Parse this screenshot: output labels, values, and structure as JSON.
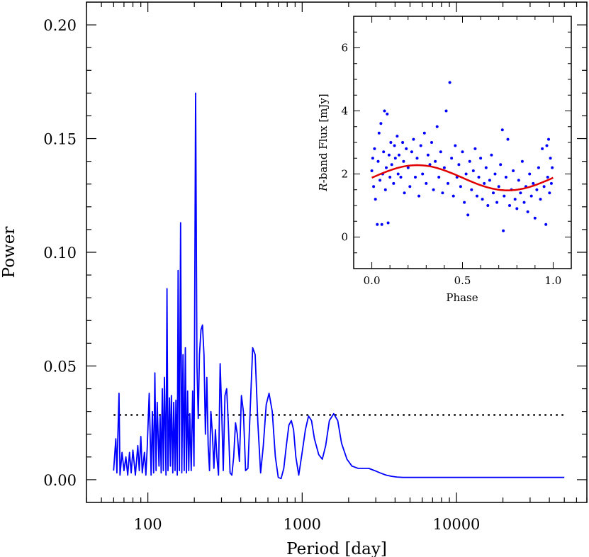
{
  "chart_data": [
    {
      "type": "line",
      "name": "periodogram",
      "xlabel": "Period [day]",
      "ylabel": "Power",
      "xscale": "log",
      "xlim": [
        40,
        70000
      ],
      "ylim": [
        -0.01,
        0.21
      ],
      "xticks": [
        100,
        1000,
        10000
      ],
      "xtick_labels": [
        "100",
        "1000",
        "10000"
      ],
      "yticks": [
        0.0,
        0.05,
        0.1,
        0.15,
        0.2
      ],
      "ytick_labels": [
        "0.00",
        "0.05",
        "0.10",
        "0.15",
        "0.20"
      ],
      "line_color": "#0000ff",
      "threshold": {
        "value": 0.0285,
        "x_range": [
          60,
          50000
        ],
        "style": "dotted",
        "color": "#000000"
      },
      "series": [
        {
          "name": "power",
          "x": [
            60,
            62,
            63,
            65,
            66,
            68,
            70,
            72,
            74,
            76,
            78,
            80,
            83,
            86,
            88,
            90,
            92,
            95,
            97,
            99,
            102,
            105,
            107,
            109,
            111,
            113,
            115,
            118,
            120,
            122,
            124,
            126,
            128,
            131,
            133,
            135,
            138,
            140,
            142,
            145,
            147,
            150,
            152,
            155,
            157,
            160,
            163,
            166,
            169,
            172,
            175,
            178,
            181,
            184,
            187,
            191,
            195,
            199,
            204,
            208,
            212,
            216,
            221,
            226,
            231,
            236,
            241,
            246,
            251,
            256,
            262,
            268,
            274,
            280,
            287,
            294,
            301,
            308,
            316,
            324,
            332,
            341,
            350,
            360,
            370,
            380,
            392,
            404,
            416,
            430,
            445,
            460,
            478,
            496,
            516,
            538,
            560,
            585,
            610,
            640,
            670,
            700,
            730,
            760,
            790,
            820,
            850,
            880,
            910,
            950,
            1000,
            1050,
            1100,
            1150,
            1200,
            1280,
            1350,
            1420,
            1500,
            1600,
            1700,
            1800,
            1950,
            2100,
            2300,
            2500,
            2700,
            2950,
            3200,
            3500,
            3800,
            4100,
            4500,
            5000,
            5600,
            6200,
            7000,
            8000,
            9000,
            10000,
            11500,
            13000,
            15000,
            18000,
            21000,
            25000,
            30000,
            36000,
            43000,
            50000
          ],
          "y": [
            0.004,
            0.018,
            0.003,
            0.038,
            0.002,
            0.012,
            0.004,
            0.01,
            0.002,
            0.012,
            0.003,
            0.013,
            0.002,
            0.015,
            0.004,
            0.019,
            0.003,
            0.012,
            0.002,
            0.014,
            0.038,
            0.002,
            0.03,
            0.003,
            0.047,
            0.004,
            0.034,
            0.006,
            0.028,
            0.003,
            0.04,
            0.004,
            0.045,
            0.002,
            0.084,
            0.004,
            0.036,
            0.006,
            0.037,
            0.003,
            0.034,
            0.004,
            0.035,
            0.002,
            0.092,
            0.004,
            0.113,
            0.003,
            0.055,
            0.004,
            0.058,
            0.003,
            0.039,
            0.004,
            0.029,
            0.004,
            0.039,
            0.006,
            0.17,
            0.05,
            0.027,
            0.055,
            0.066,
            0.068,
            0.055,
            0.02,
            0.045,
            0.015,
            0.004,
            0.03,
            0.02,
            0.005,
            0.022,
            0.01,
            0.002,
            0.051,
            0.03,
            0.004,
            0.037,
            0.04,
            0.025,
            0.003,
            0.002,
            0.01,
            0.025,
            0.02,
            0.008,
            0.037,
            0.03,
            0.004,
            0.005,
            0.03,
            0.058,
            0.055,
            0.025,
            0.003,
            0.015,
            0.033,
            0.038,
            0.03,
            0.01,
            0.001,
            0.0005,
            0.005,
            0.015,
            0.024,
            0.026,
            0.022,
            0.01,
            0.002,
            0.012,
            0.022,
            0.028,
            0.026,
            0.018,
            0.011,
            0.009,
            0.015,
            0.026,
            0.029,
            0.026,
            0.016,
            0.009,
            0.006,
            0.005,
            0.005,
            0.005,
            0.004,
            0.003,
            0.002,
            0.0015,
            0.0012,
            0.001,
            0.001,
            0.001,
            0.001,
            0.001,
            0.001,
            0.001,
            0.001,
            0.001,
            0.001,
            0.001,
            0.001,
            0.001,
            0.001,
            0.001,
            0.001,
            0.001,
            0.001
          ]
        }
      ]
    },
    {
      "type": "scatter",
      "name": "inset-phase-plot",
      "xlabel": "Phase",
      "ylabel_prefix": "R",
      "ylabel": "-band Flux [mJy]",
      "xlim": [
        -0.1,
        1.1
      ],
      "ylim": [
        -1,
        7
      ],
      "xticks": [
        0,
        0.5,
        1
      ],
      "xtick_labels": [
        "0.0",
        "0.5",
        "1.0"
      ],
      "yticks": [
        0,
        2,
        4,
        6
      ],
      "ytick_labels": [
        "0",
        "2",
        "4",
        "6"
      ],
      "point_color": "#0000ff",
      "fit_color": "#e00000",
      "fit": {
        "type": "sinusoid",
        "mean": 1.88,
        "amplitude": 0.4,
        "peak_phase": 0.25
      },
      "points": [
        [
          0.0,
          2.1
        ],
        [
          0.005,
          2.5
        ],
        [
          0.01,
          1.6
        ],
        [
          0.015,
          2.8
        ],
        [
          0.02,
          1.2
        ],
        [
          0.03,
          0.4
        ],
        [
          0.035,
          2.4
        ],
        [
          0.04,
          3.3
        ],
        [
          0.045,
          1.8
        ],
        [
          0.05,
          3.6
        ],
        [
          0.055,
          0.4
        ],
        [
          0.06,
          2.0
        ],
        [
          0.065,
          2.7
        ],
        [
          0.07,
          4.0
        ],
        [
          0.075,
          1.5
        ],
        [
          0.08,
          2.2
        ],
        [
          0.085,
          3.9
        ],
        [
          0.09,
          0.45
        ],
        [
          0.095,
          2.6
        ],
        [
          0.1,
          1.9
        ],
        [
          0.105,
          3.0
        ],
        [
          0.11,
          2.3
        ],
        [
          0.12,
          1.7
        ],
        [
          0.125,
          2.9
        ],
        [
          0.13,
          2.5
        ],
        [
          0.14,
          3.2
        ],
        [
          0.145,
          2.0
        ],
        [
          0.15,
          2.6
        ],
        [
          0.16,
          1.9
        ],
        [
          0.17,
          3.0
        ],
        [
          0.175,
          2.4
        ],
        [
          0.18,
          1.4
        ],
        [
          0.19,
          2.8
        ],
        [
          0.2,
          2.2
        ],
        [
          0.21,
          1.6
        ],
        [
          0.22,
          2.7
        ],
        [
          0.23,
          3.1
        ],
        [
          0.24,
          1.9
        ],
        [
          0.25,
          2.5
        ],
        [
          0.26,
          1.3
        ],
        [
          0.27,
          2.9
        ],
        [
          0.28,
          2.0
        ],
        [
          0.29,
          3.3
        ],
        [
          0.3,
          1.7
        ],
        [
          0.31,
          2.6
        ],
        [
          0.32,
          2.3
        ],
        [
          0.33,
          3.0
        ],
        [
          0.34,
          1.5
        ],
        [
          0.35,
          2.4
        ],
        [
          0.36,
          3.5
        ],
        [
          0.37,
          1.9
        ],
        [
          0.38,
          2.7
        ],
        [
          0.39,
          1.4
        ],
        [
          0.4,
          2.2
        ],
        [
          0.41,
          4.0
        ],
        [
          0.42,
          1.7
        ],
        [
          0.43,
          4.9
        ],
        [
          0.44,
          2.5
        ],
        [
          0.45,
          1.3
        ],
        [
          0.46,
          2.9
        ],
        [
          0.47,
          1.9
        ],
        [
          0.48,
          2.3
        ],
        [
          0.49,
          1.6
        ],
        [
          0.5,
          2.7
        ],
        [
          0.51,
          1.1
        ],
        [
          0.52,
          2.0
        ],
        [
          0.53,
          0.7
        ],
        [
          0.54,
          2.4
        ],
        [
          0.55,
          1.5
        ],
        [
          0.56,
          2.1
        ],
        [
          0.57,
          2.8
        ],
        [
          0.58,
          1.3
        ],
        [
          0.59,
          1.9
        ],
        [
          0.6,
          2.5
        ],
        [
          0.61,
          1.2
        ],
        [
          0.62,
          1.7
        ],
        [
          0.63,
          2.2
        ],
        [
          0.64,
          1.0
        ],
        [
          0.65,
          1.8
        ],
        [
          0.66,
          2.6
        ],
        [
          0.67,
          1.4
        ],
        [
          0.68,
          2.0
        ],
        [
          0.69,
          1.1
        ],
        [
          0.7,
          1.6
        ],
        [
          0.71,
          2.3
        ],
        [
          0.72,
          3.4
        ],
        [
          0.725,
          0.2
        ],
        [
          0.73,
          1.3
        ],
        [
          0.74,
          1.9
        ],
        [
          0.75,
          3.1
        ],
        [
          0.76,
          1.0
        ],
        [
          0.77,
          1.5
        ],
        [
          0.78,
          2.1
        ],
        [
          0.79,
          1.2
        ],
        [
          0.8,
          0.9
        ],
        [
          0.81,
          1.8
        ],
        [
          0.82,
          1.4
        ],
        [
          0.83,
          2.4
        ],
        [
          0.84,
          1.1
        ],
        [
          0.85,
          1.6
        ],
        [
          0.86,
          0.8
        ],
        [
          0.87,
          2.0
        ],
        [
          0.88,
          1.3
        ],
        [
          0.89,
          1.7
        ],
        [
          0.9,
          0.6
        ],
        [
          0.91,
          1.5
        ],
        [
          0.92,
          2.2
        ],
        [
          0.93,
          1.2
        ],
        [
          0.94,
          2.8
        ],
        [
          0.95,
          1.6
        ],
        [
          0.96,
          0.4
        ],
        [
          0.965,
          2.9
        ],
        [
          0.97,
          1.9
        ],
        [
          0.975,
          3.1
        ],
        [
          0.98,
          1.4
        ],
        [
          0.985,
          2.5
        ],
        [
          0.99,
          1.7
        ],
        [
          0.995,
          2.2
        ]
      ]
    }
  ]
}
